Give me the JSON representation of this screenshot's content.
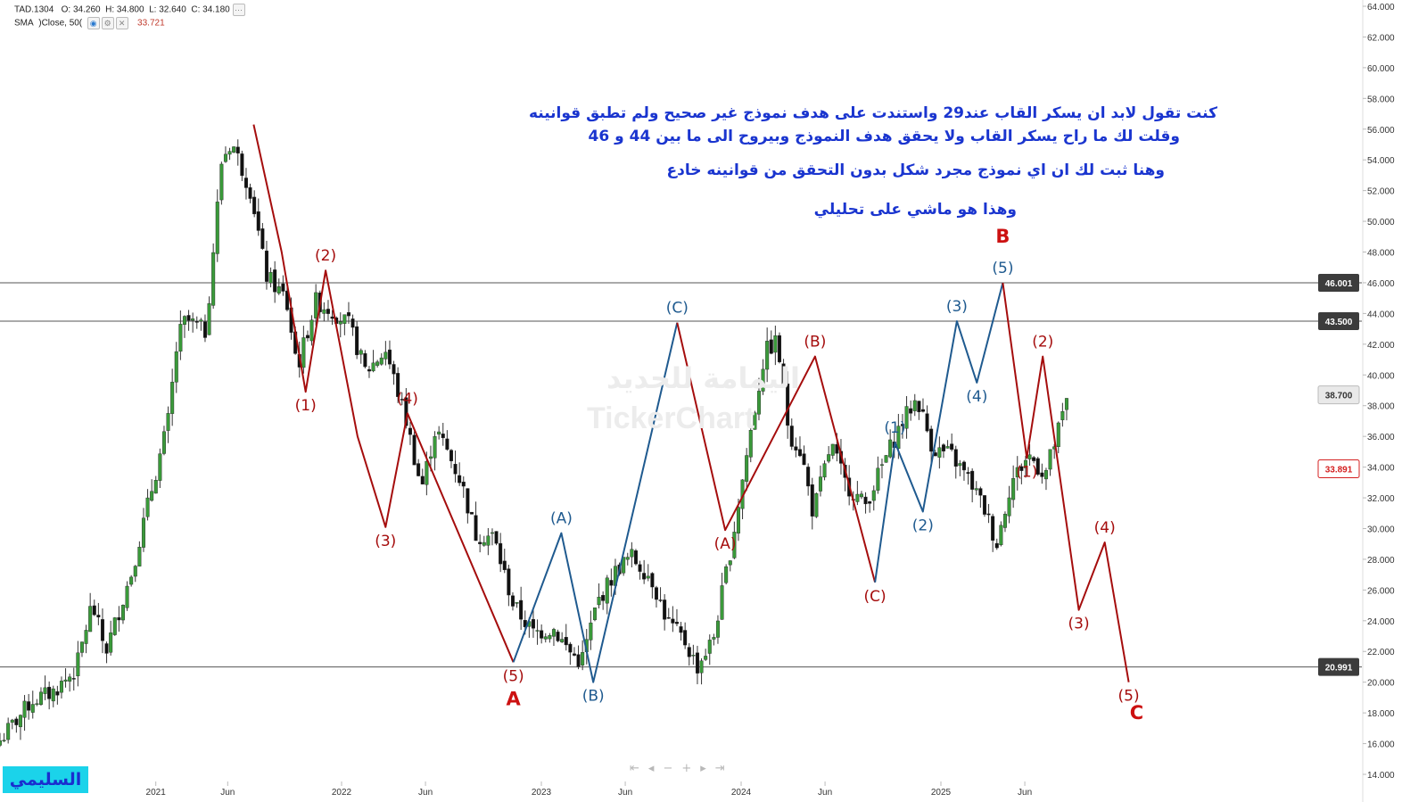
{
  "header": {
    "symbol": "TAD.1304",
    "o_label": "O:",
    "o_value": "34.260",
    "h_label": "H:",
    "h_value": "34.800",
    "l_label": "L:",
    "l_value": "32.640",
    "c_label": "C:",
    "c_value": "34.180",
    "sma_label": "SMA",
    "sma_params": ")Close, 50(",
    "sma_value": "33.721"
  },
  "annotations": {
    "line1": "كنت تقول لابد ان يسكر القاب عند29 واستندت على هدف نموذج غير صحيح ولم تطبق قوانينه",
    "line2": "وقلت لك ما راح يسكر القاب ولا يحقق هدف النموذج  وبيروح الى ما بين 44 و 46",
    "line3": "وهنا ثبت لك ان اي نموذج مجرد شكل بدون التحقق من قوانينه خادع",
    "line4": "وهذا هو ماشي على تحليلي"
  },
  "watermark": {
    "arabic": "اليمامة للحديد",
    "latin": "TickerChart"
  },
  "brand": "السليمي",
  "nav_icons": [
    "first-icon",
    "prev-icon",
    "zoom-out-icon",
    "zoom-in-icon",
    "next-icon",
    "last-icon"
  ],
  "chart_data": {
    "type": "candlestick",
    "colors": {
      "up": "#3a9a3a",
      "down": "#111111",
      "wave_red": "#a50d0d",
      "wave_blue": "#1f5a8f",
      "text_blue": "#1a35cf"
    },
    "y_axis": {
      "ticks": [
        "64.000",
        "62.000",
        "60.000",
        "58.000",
        "56.000",
        "54.000",
        "52.000",
        "50.000",
        "48.000",
        "46.000",
        "44.000",
        "42.000",
        "40.000",
        "38.000",
        "36.000",
        "34.000",
        "32.000",
        "30.000",
        "28.000",
        "26.000",
        "24.000",
        "22.000",
        "20.000",
        "18.000",
        "16.000",
        "14.000"
      ],
      "range": [
        13.6,
        64.2
      ]
    },
    "x_axis": {
      "ticks": [
        {
          "t": 0.07,
          "label": "2021"
        },
        {
          "t": 0.43,
          "label": "Jun"
        },
        {
          "t": 1.0,
          "label": "2022"
        },
        {
          "t": 1.42,
          "label": "Jun"
        },
        {
          "t": 2.0,
          "label": "2023"
        },
        {
          "t": 2.42,
          "label": "Jun"
        },
        {
          "t": 3.0,
          "label": "2024"
        },
        {
          "t": 3.42,
          "label": "Jun"
        },
        {
          "t": 4.0,
          "label": "2025"
        },
        {
          "t": 4.42,
          "label": "Jun"
        }
      ]
    },
    "price_labels": [
      {
        "value": 46.001,
        "text": "46.001",
        "style": "dark"
      },
      {
        "value": 43.5,
        "text": "43.500",
        "style": "dark"
      },
      {
        "value": 38.7,
        "text": "38.700",
        "style": "light"
      },
      {
        "value": 33.891,
        "text": "33.891",
        "style": "red"
      },
      {
        "value": 20.991,
        "text": "20.991",
        "style": "dark"
      }
    ],
    "horizontal_lines": [
      46.001,
      43.5,
      20.991
    ],
    "ohlc_path": [
      [
        -0.71,
        16.2
      ],
      [
        -0.55,
        18.8
      ],
      [
        -0.45,
        19.3
      ],
      [
        -0.33,
        20.8
      ],
      [
        -0.25,
        25.1
      ],
      [
        -0.18,
        22.0
      ],
      [
        -0.05,
        27.2
      ],
      [
        0.05,
        32.6
      ],
      [
        0.13,
        36.8
      ],
      [
        0.18,
        42.4
      ],
      [
        0.22,
        43.6
      ],
      [
        0.32,
        42.8
      ],
      [
        0.4,
        54.0
      ],
      [
        0.45,
        55.2
      ],
      [
        0.55,
        51.8
      ],
      [
        0.62,
        46.5
      ],
      [
        0.72,
        45.0
      ],
      [
        0.78,
        40.5
      ],
      [
        0.87,
        44.8
      ],
      [
        0.95,
        44.2
      ],
      [
        1.04,
        43.2
      ],
      [
        1.12,
        40.2
      ],
      [
        1.22,
        41.6
      ],
      [
        1.32,
        37.2
      ],
      [
        1.4,
        32.6
      ],
      [
        1.47,
        36.5
      ],
      [
        1.53,
        35.0
      ],
      [
        1.6,
        33.0
      ],
      [
        1.67,
        29.6
      ],
      [
        1.76,
        29.5
      ],
      [
        1.86,
        25.0
      ],
      [
        1.96,
        23.2
      ],
      [
        2.06,
        23.5
      ],
      [
        2.14,
        22.0
      ],
      [
        2.2,
        21.3
      ],
      [
        2.28,
        25.2
      ],
      [
        2.38,
        27.4
      ],
      [
        2.45,
        28.2
      ],
      [
        2.55,
        26.8
      ],
      [
        2.63,
        24.0
      ],
      [
        2.72,
        22.6
      ],
      [
        2.78,
        21.0
      ],
      [
        2.86,
        22.8
      ],
      [
        2.95,
        28.8
      ],
      [
        3.05,
        36.5
      ],
      [
        3.12,
        41.5
      ],
      [
        3.18,
        42.2
      ],
      [
        3.24,
        36.2
      ],
      [
        3.3,
        35.0
      ],
      [
        3.36,
        31.0
      ],
      [
        3.45,
        35.5
      ],
      [
        3.52,
        33.0
      ],
      [
        3.62,
        31.5
      ],
      [
        3.72,
        34.5
      ],
      [
        3.8,
        36.8
      ],
      [
        3.88,
        38.5
      ],
      [
        3.96,
        35.2
      ],
      [
        4.05,
        34.8
      ],
      [
        4.15,
        33.0
      ],
      [
        4.22,
        31.2
      ],
      [
        4.28,
        29.0
      ],
      [
        4.35,
        33.0
      ],
      [
        4.44,
        34.8
      ],
      [
        4.52,
        33.5
      ],
      [
        4.58,
        36.0
      ],
      [
        4.64,
        38.7
      ]
    ],
    "red_wave_path": [
      [
        0.56,
        56.3
      ],
      [
        0.7,
        48.0
      ],
      [
        0.82,
        38.9
      ],
      [
        0.92,
        46.8
      ],
      [
        1.08,
        36.0
      ],
      [
        1.22,
        30.1
      ],
      [
        1.33,
        37.5
      ],
      [
        1.86,
        21.3
      ]
    ],
    "blue_abc_path": [
      [
        1.86,
        21.3
      ],
      [
        2.1,
        29.7
      ],
      [
        2.26,
        20.0
      ],
      [
        2.68,
        43.4
      ]
    ],
    "red_abc_path": [
      [
        2.68,
        43.4
      ],
      [
        2.92,
        29.9
      ],
      [
        3.37,
        41.2
      ],
      [
        3.67,
        26.5
      ]
    ],
    "blue_impulse_path": [
      [
        3.67,
        26.5
      ],
      [
        3.77,
        35.6
      ],
      [
        3.91,
        31.1
      ],
      [
        4.08,
        43.5
      ],
      [
        4.18,
        39.5
      ],
      [
        4.31,
        46.0
      ]
    ],
    "projection_path": [
      [
        4.31,
        46.0
      ],
      [
        4.43,
        34.6
      ],
      [
        4.51,
        41.2
      ],
      [
        4.69,
        24.7
      ],
      [
        4.82,
        29.1
      ],
      [
        4.94,
        20.0
      ]
    ],
    "wave_labels": [
      {
        "t": 0.82,
        "v": 38.9,
        "text": "(1)",
        "pos": "below",
        "color": "red"
      },
      {
        "t": 0.92,
        "v": 46.8,
        "text": "(2)",
        "pos": "above",
        "color": "red"
      },
      {
        "t": 1.22,
        "v": 30.1,
        "text": "(3)",
        "pos": "below",
        "color": "red"
      },
      {
        "t": 1.33,
        "v": 37.5,
        "text": "(4)",
        "pos": "above",
        "color": "red"
      },
      {
        "t": 1.86,
        "v": 21.3,
        "text": "(5)",
        "pos": "below",
        "color": "red"
      },
      {
        "t": 2.1,
        "v": 29.7,
        "text": "(A)",
        "pos": "above",
        "color": "blue"
      },
      {
        "t": 2.26,
        "v": 20.0,
        "text": "(B)",
        "pos": "below",
        "color": "blue"
      },
      {
        "t": 2.68,
        "v": 43.4,
        "text": "(C)",
        "pos": "above",
        "color": "blue"
      },
      {
        "t": 2.92,
        "v": 29.9,
        "text": "(A)",
        "pos": "below",
        "color": "red"
      },
      {
        "t": 3.37,
        "v": 41.2,
        "text": "(B)",
        "pos": "above",
        "color": "red"
      },
      {
        "t": 3.67,
        "v": 26.5,
        "text": "(C)",
        "pos": "below",
        "color": "red"
      },
      {
        "t": 3.77,
        "v": 35.6,
        "text": "(1)",
        "pos": "above",
        "color": "blue"
      },
      {
        "t": 3.91,
        "v": 31.1,
        "text": "(2)",
        "pos": "below",
        "color": "blue"
      },
      {
        "t": 4.08,
        "v": 43.5,
        "text": "(3)",
        "pos": "above",
        "color": "blue"
      },
      {
        "t": 4.18,
        "v": 39.5,
        "text": "(4)",
        "pos": "below",
        "color": "blue"
      },
      {
        "t": 4.31,
        "v": 46.0,
        "text": "(5)",
        "pos": "above",
        "color": "blue"
      },
      {
        "t": 4.43,
        "v": 34.6,
        "text": "(1)",
        "pos": "below",
        "color": "red"
      },
      {
        "t": 4.51,
        "v": 41.2,
        "text": "(2)",
        "pos": "above",
        "color": "red"
      },
      {
        "t": 4.69,
        "v": 24.7,
        "text": "(3)",
        "pos": "below",
        "color": "red"
      },
      {
        "t": 4.82,
        "v": 29.1,
        "text": "(4)",
        "pos": "above",
        "color": "red"
      },
      {
        "t": 4.94,
        "v": 20.0,
        "text": "(5)",
        "pos": "below",
        "color": "red"
      }
    ],
    "major_labels": [
      {
        "t": 1.86,
        "v": 18.5,
        "text": "A"
      },
      {
        "t": 4.31,
        "v": 48.6,
        "text": "B"
      },
      {
        "t": 4.98,
        "v": 17.6,
        "text": "C"
      }
    ]
  }
}
